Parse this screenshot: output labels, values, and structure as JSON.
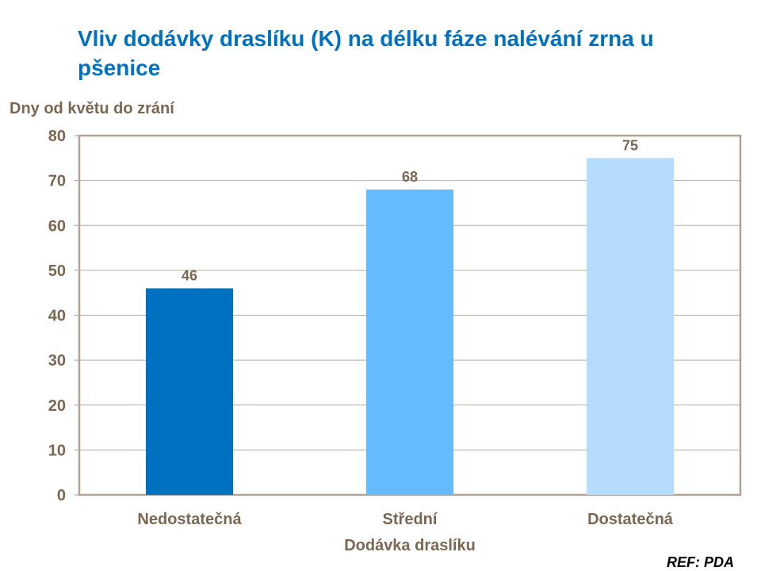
{
  "chart_data": {
    "type": "bar",
    "title": "Vliv dodávky draslíku (K) na délku fáze nalévání zrna u pšenice",
    "xlabel": "Dodávka draslíku",
    "ylabel": "Dny od květu do zrání",
    "categories": [
      "Nedostatečná",
      "Střední",
      "Dostatečná"
    ],
    "values": [
      46,
      68,
      75
    ],
    "colors": [
      "#0070c0",
      "#66bbff",
      "#b5dcfd"
    ],
    "ylim": [
      0,
      80
    ],
    "yticks": [
      0,
      10,
      20,
      30,
      40,
      50,
      60,
      70,
      80
    ],
    "grid": true,
    "legend": "none"
  },
  "footer": {
    "reference": "REF: PDA"
  }
}
